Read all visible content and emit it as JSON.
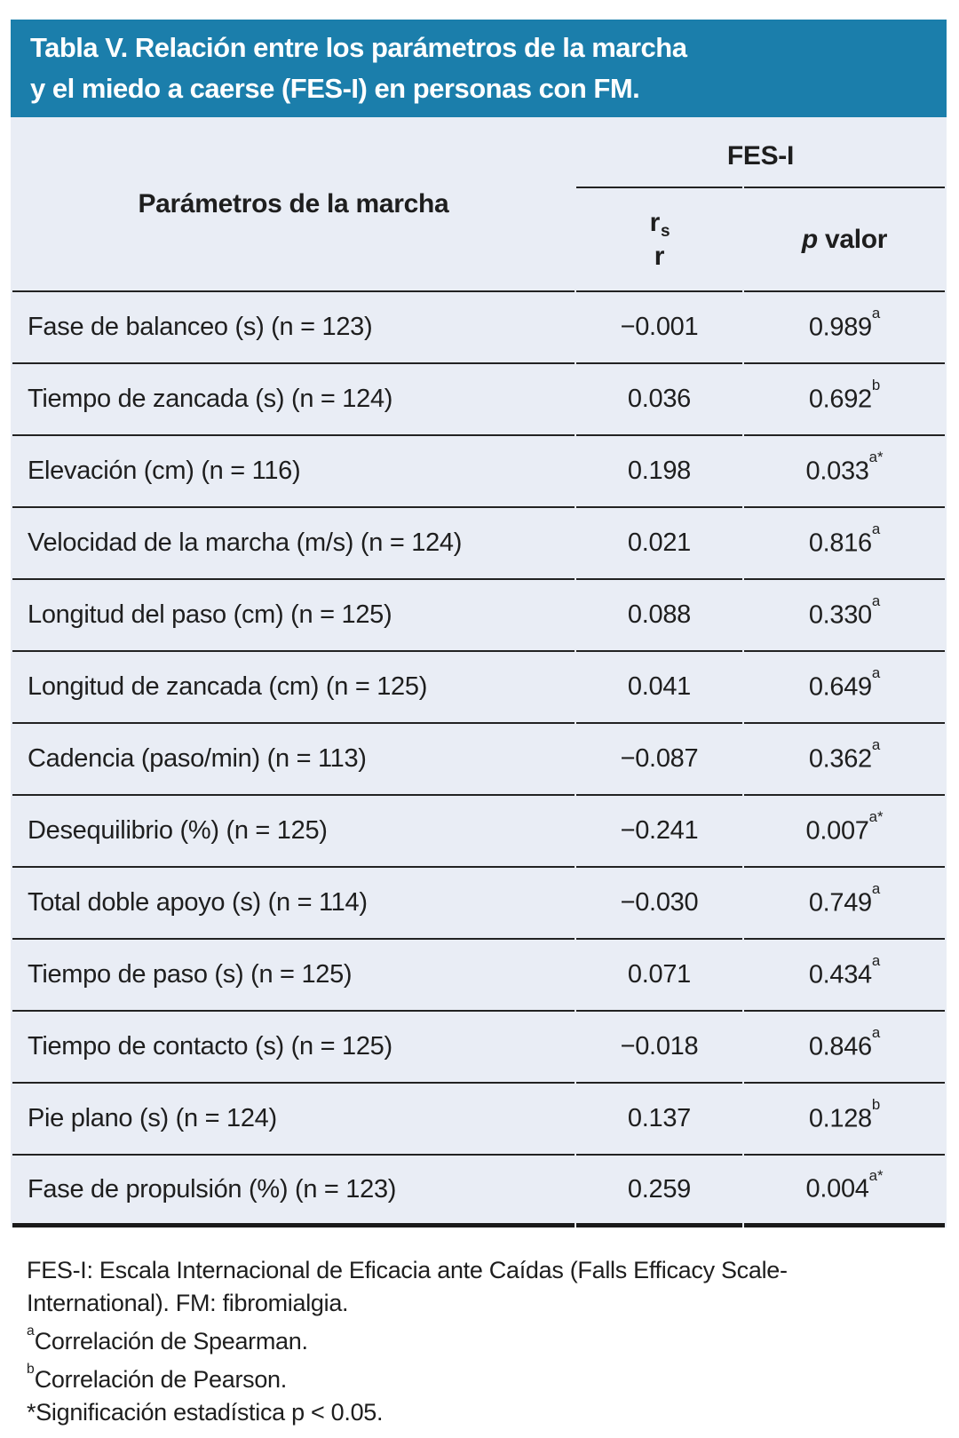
{
  "colors": {
    "banner_bg": "#1b7eab",
    "table_bg": "#e9edf5",
    "rule_line": "#222222",
    "title_text": "#ffffff",
    "body_text": "#1e1e1e"
  },
  "title": {
    "line1": "Tabla V. Relación entre los parámetros de la marcha",
    "line2": "y el miedo a caerse (FES-I) en personas con FM."
  },
  "table": {
    "param_header": "Parámetros de la marcha",
    "group_header": "FES-I",
    "r_header": {
      "r_main": "r",
      "r_sub": "s",
      "r_second": "r"
    },
    "p_header": {
      "italic_part": "p",
      "rest_part": " valor"
    },
    "rows": [
      {
        "param": "Fase de balanceo (s) (n = 123)",
        "r": "−0.001",
        "p": "0.989",
        "p_sup": "a"
      },
      {
        "param": "Tiempo de zancada (s) (n = 124)",
        "r": "0.036",
        "p": "0.692",
        "p_sup": "b"
      },
      {
        "param": "Elevación (cm) (n = 116)",
        "r": "0.198",
        "p": "0.033",
        "p_sup": "a*"
      },
      {
        "param": "Velocidad de la marcha (m/s) (n = 124)",
        "r": "0.021",
        "p": "0.816",
        "p_sup": "a"
      },
      {
        "param": "Longitud del paso (cm) (n = 125)",
        "r": "0.088",
        "p": "0.330",
        "p_sup": "a"
      },
      {
        "param": "Longitud de zancada (cm) (n = 125)",
        "r": "0.041",
        "p": "0.649",
        "p_sup": "a"
      },
      {
        "param": "Cadencia (paso/min) (n = 113)",
        "r": "−0.087",
        "p": "0.362",
        "p_sup": "a"
      },
      {
        "param": "Desequilibrio (%) (n = 125)",
        "r": "−0.241",
        "p": "0.007",
        "p_sup": "a*"
      },
      {
        "param": "Total doble apoyo (s) (n = 114)",
        "r": "−0.030",
        "p": "0.749",
        "p_sup": "a"
      },
      {
        "param": "Tiempo de paso (s) (n = 125)",
        "r": "0.071",
        "p": "0.434",
        "p_sup": "a"
      },
      {
        "param": "Tiempo de contacto (s) (n = 125)",
        "r": "−0.018",
        "p": "0.846",
        "p_sup": "a"
      },
      {
        "param": "Pie plano (s) (n = 124)",
        "r": "0.137",
        "p": "0.128",
        "p_sup": "b"
      },
      {
        "param": "Fase de propulsión (%) (n = 123)",
        "r": "0.259",
        "p": "0.004",
        "p_sup": "a*"
      }
    ]
  },
  "footnotes": {
    "abbrev_line1": "FES-I: Escala Internacional de Eficacia ante Caídas (Falls Efficacy Scale-",
    "abbrev_line2": "International). FM: fibromialgia.",
    "spearman_marker": "a",
    "spearman_text": "Correlación de Spearman.",
    "pearson_marker": "b",
    "pearson_text": "Correlación de Pearson.",
    "significance_text": "*Significación estadística p < 0.05."
  }
}
